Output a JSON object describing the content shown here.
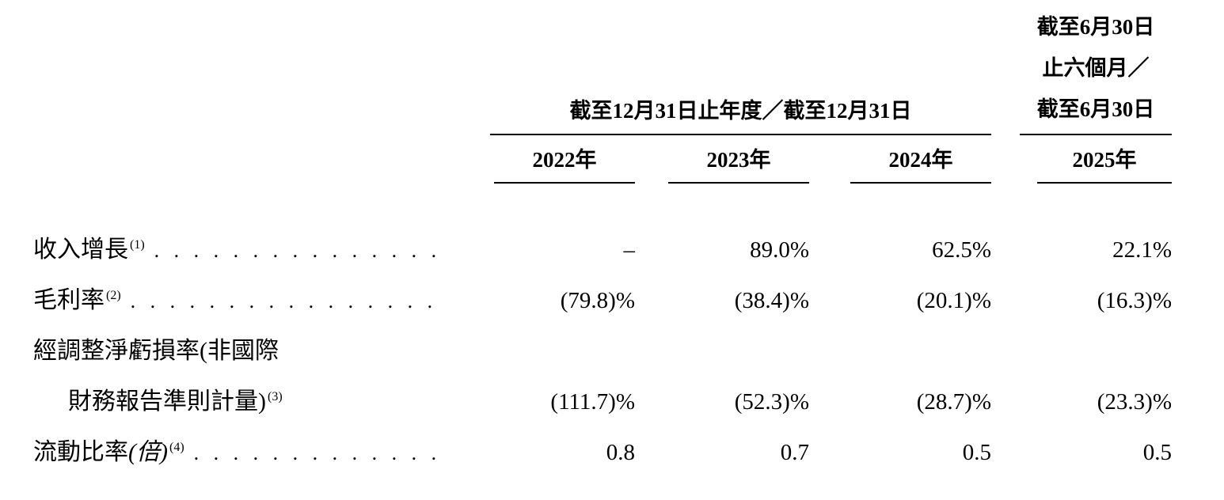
{
  "table": {
    "group_header": "截至12月31日止年度／截至12月31日",
    "period_header": {
      "line1": "截至6月30日",
      "line2": "止六個月／",
      "line3": "截至6月30日"
    },
    "years": [
      "2022年",
      "2023年",
      "2024年",
      "2025年"
    ],
    "rows": [
      {
        "label": "收入增長",
        "footnote": "(1)",
        "leader": ". . . . . . . . . . . . . . . . . . . . . . . .",
        "values": [
          "–",
          "89.0%",
          "62.5%",
          "22.1%"
        ]
      },
      {
        "label": "毛利率",
        "footnote": "(2)",
        "leader": ". . . . . . . . . . . . . . . . . . . . . . . .",
        "values": [
          "(79.8)%",
          "(38.4)%",
          "(20.1)%",
          "(16.3)%"
        ]
      },
      {
        "label_line1": "經調整淨虧損率(非國際",
        "label_line2": "財務報告準則計量)",
        "footnote": "(3)",
        "values": [
          "(111.7)%",
          "(52.3)%",
          "(28.7)%",
          "(23.3)%"
        ]
      },
      {
        "label": "流動比率",
        "label_italic": "(倍)",
        "footnote": "(4)",
        "leader": ". . . . . . . . . . . . . . . . . . . . . . . .",
        "values": [
          "0.8",
          "0.7",
          "0.5",
          "0.5"
        ]
      }
    ]
  }
}
